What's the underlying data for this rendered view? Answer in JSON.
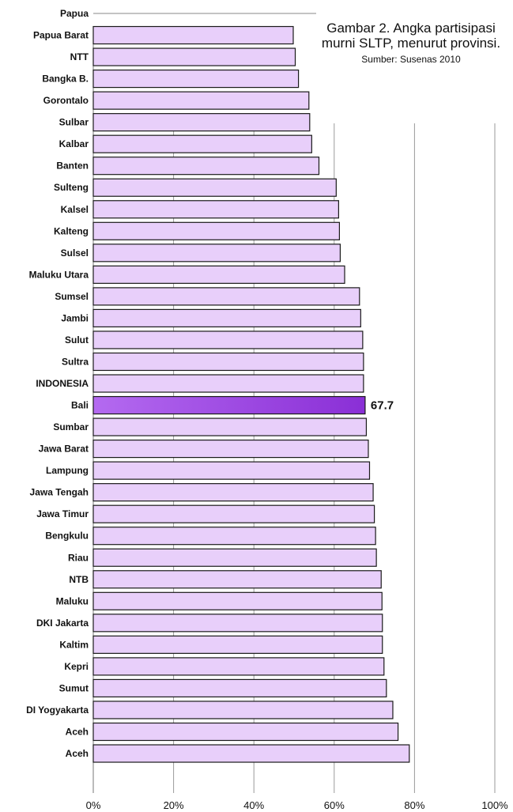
{
  "chart_data": {
    "type": "bar",
    "orientation": "horizontal",
    "title": "Gambar 2. Angka partisipasi murni SLTP, menurut provinsi.",
    "subtitle": "Sumber: Susenas 2010",
    "categories": [
      "Papua",
      "Papua Barat",
      "NTT",
      "Bangka B.",
      "Gorontalo",
      "Sulbar",
      "Kalbar",
      "Banten",
      "Sulteng",
      "Kalsel",
      "Kalteng",
      "Sulsel",
      "Maluku Utara",
      "Sumsel",
      "Jambi",
      "Sulut",
      "Sultra",
      "INDONESIA",
      "Bali",
      "Sumbar",
      "Jawa Barat",
      "Lampung",
      "Jawa Tengah",
      "Jawa Timur",
      "Bengkulu",
      "Riau",
      "NTB",
      "Maluku",
      "DKI Jakarta",
      "Kaltim",
      "Kepri",
      "Sumut",
      "DI Yogyakarta",
      "Aceh",
      "Aceh"
    ],
    "values": [
      null,
      49.8,
      50.3,
      51.1,
      53.7,
      53.9,
      54.4,
      56.2,
      60.5,
      61.1,
      61.3,
      61.5,
      62.6,
      66.3,
      66.6,
      67.1,
      67.3,
      67.3,
      67.7,
      68.0,
      68.5,
      68.8,
      69.7,
      70.0,
      70.3,
      70.5,
      71.7,
      71.9,
      72.0,
      72.0,
      72.4,
      73.0,
      74.6,
      75.9,
      78.7
    ],
    "highlight": {
      "category": "Bali",
      "label": "67.7"
    },
    "xlim": [
      0,
      100
    ],
    "xticks": [
      "0%",
      "20%",
      "40%",
      "60%",
      "80%",
      "100%"
    ],
    "grid": true,
    "colors": {
      "bar": "#e8cffa",
      "bar_border": "#1a1a1a",
      "highlight_start": "#b46af0",
      "highlight_end": "#8a2fd6",
      "grid": "#9a9a9a"
    }
  }
}
